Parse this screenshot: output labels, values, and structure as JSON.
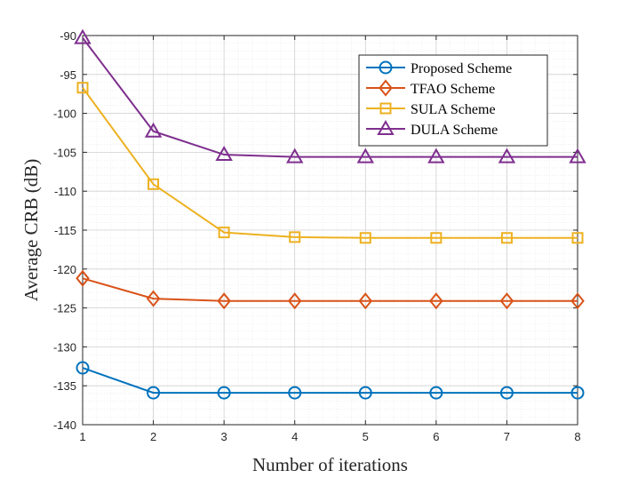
{
  "chart_data": {
    "type": "line",
    "title": "",
    "xlabel": "Number of iterations",
    "ylabel": "Average CRB (dB)",
    "xlim": [
      1,
      8
    ],
    "ylim": [
      -140,
      -90
    ],
    "xticks": [
      1,
      2,
      3,
      4,
      5,
      6,
      7,
      8
    ],
    "yticks": [
      -140,
      -135,
      -130,
      -125,
      -120,
      -115,
      -110,
      -105,
      -100,
      -95,
      -90
    ],
    "grid": true,
    "minor_grid": true,
    "legend_position": "top-right",
    "x": [
      1,
      2,
      3,
      4,
      5,
      6,
      7,
      8
    ],
    "series": [
      {
        "name": "Proposed Scheme",
        "color": "#0072BD",
        "marker": "circle",
        "values": [
          -132.7,
          -135.9,
          -135.9,
          -135.9,
          -135.9,
          -135.9,
          -135.9,
          -135.9
        ]
      },
      {
        "name": "TFAO Scheme",
        "color": "#D95319",
        "marker": "diamond",
        "values": [
          -121.2,
          -123.8,
          -124.1,
          -124.1,
          -124.1,
          -124.1,
          -124.1,
          -124.1
        ]
      },
      {
        "name": "SULA Scheme",
        "color": "#EDB120",
        "marker": "square",
        "values": [
          -96.7,
          -109.1,
          -115.3,
          -115.9,
          -116.0,
          -116.0,
          -116.0,
          -116.0
        ]
      },
      {
        "name": "DULA Scheme",
        "color": "#7E2F8E",
        "marker": "triangle",
        "values": [
          -90.3,
          -102.3,
          -105.3,
          -105.6,
          -105.6,
          -105.6,
          -105.6,
          -105.6
        ]
      }
    ]
  }
}
